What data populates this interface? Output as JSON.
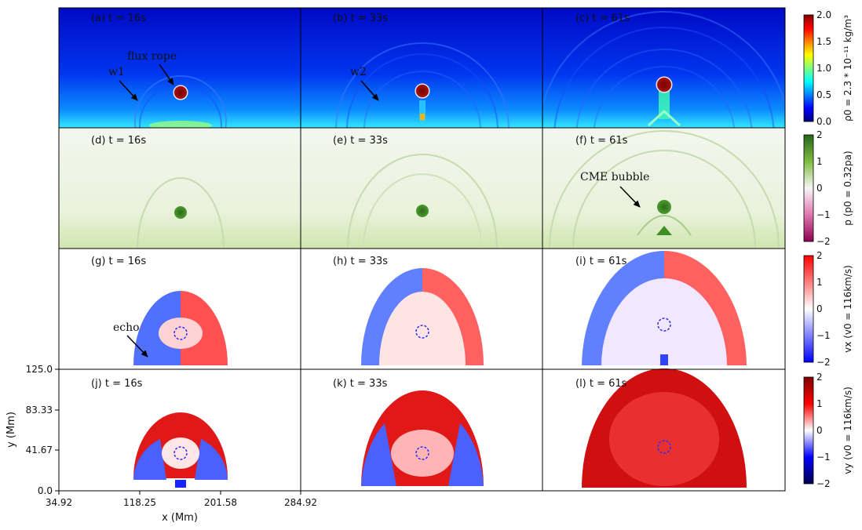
{
  "chart_data": {
    "type": "heatmap",
    "title": "",
    "xlabel": "x (Mm)",
    "ylabel": "y (Mm)",
    "x_ticks": [
      "34.92",
      "118.25",
      "201.58",
      "284.92"
    ],
    "y_ticks": [
      "0.0",
      "41.67",
      "83.33",
      "125.0"
    ],
    "xlim": [
      34.92,
      284.92
    ],
    "ylim": [
      0.0,
      125.0
    ],
    "grid": false,
    "rows": [
      {
        "variable": "density",
        "colorbar_label": "ρ0 = 2.3 * 10⁻¹¹ kg/m³",
        "colorbar_ticks": [
          "0.0",
          "0.5",
          "1.0",
          "1.5",
          "2.0"
        ],
        "colorbar_range": [
          0.0,
          2.0
        ],
        "colorscale": "jet",
        "panels": [
          {
            "label": "(a) t = 16s",
            "time_s": 16,
            "front_radius": 0.33
          },
          {
            "label": "(b) t = 33s",
            "time_s": 33,
            "front_radius": 0.62
          },
          {
            "label": "(c) t = 61s",
            "time_s": 61,
            "front_radius": 0.95
          }
        ]
      },
      {
        "variable": "pressure",
        "colorbar_label": "p (p0 = 0.32pa)",
        "colorbar_ticks": [
          "−2",
          "−1",
          "0",
          "1",
          "2"
        ],
        "colorbar_range": [
          -2,
          2
        ],
        "colorscale": "PiYG",
        "panels": [
          {
            "label": "(d) t = 16s",
            "time_s": 16,
            "front_radius": 0.33
          },
          {
            "label": "(e) t = 33s",
            "time_s": 33,
            "front_radius": 0.62
          },
          {
            "label": "(f) t = 61s",
            "time_s": 61,
            "front_radius": 0.95
          }
        ]
      },
      {
        "variable": "vx",
        "colorbar_label": "vx (v0 = 116km/s)",
        "colorbar_ticks": [
          "−2",
          "−1",
          "0",
          "1",
          "2"
        ],
        "colorbar_range": [
          -2,
          2
        ],
        "colorscale": "bwr",
        "panels": [
          {
            "label": "(g) t = 16s",
            "time_s": 16,
            "front_radius": 0.33
          },
          {
            "label": "(h) t = 33s",
            "time_s": 33,
            "front_radius": 0.62
          },
          {
            "label": "(i) t = 61s",
            "time_s": 61,
            "front_radius": 0.95
          }
        ]
      },
      {
        "variable": "vy",
        "colorbar_label": "vy (v0 = 116km/s)",
        "colorbar_ticks": [
          "−2",
          "−1",
          "0",
          "1",
          "2"
        ],
        "colorbar_range": [
          -2,
          2
        ],
        "colorscale": "seismic",
        "panels": [
          {
            "label": "(j) t = 16s",
            "time_s": 16,
            "front_radius": 0.33
          },
          {
            "label": "(k) t = 33s",
            "time_s": 33,
            "front_radius": 0.62
          },
          {
            "label": "(l) t = 61s",
            "time_s": 61,
            "front_radius": 0.95
          }
        ]
      }
    ],
    "annotations": [
      {
        "text": "w1",
        "panel": "a"
      },
      {
        "text": "flux rope",
        "panel": "a"
      },
      {
        "text": "w2",
        "panel": "b"
      },
      {
        "text": "CME bubble",
        "panel": "f"
      },
      {
        "text": "echo",
        "panel": "g"
      }
    ]
  },
  "colors": {
    "flux_rope": "#8b0a0a",
    "axes": "#000000",
    "density_bg_top": "#0006c8",
    "density_bg_bottom": "#1fc8ff",
    "pressure_bg": "#eef4e4",
    "pressure_core": "#2e7d1e"
  }
}
